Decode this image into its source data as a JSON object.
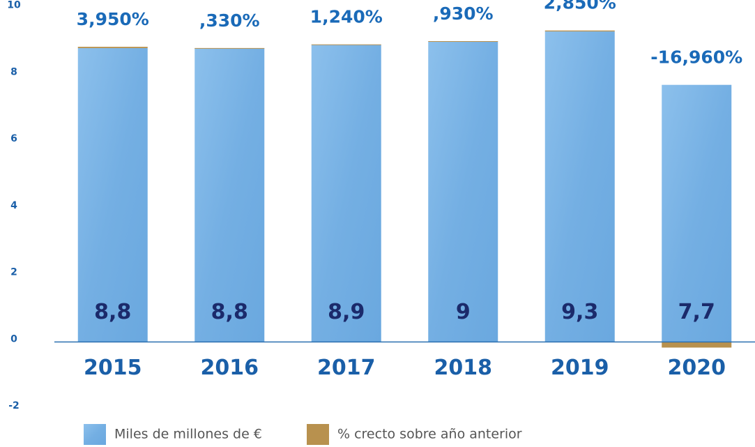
{
  "chart_data": {
    "type": "bar",
    "stacked": true,
    "categories": [
      "2015",
      "2016",
      "2017",
      "2018",
      "2019",
      "2020"
    ],
    "series": [
      {
        "name": "Miles de millones de €",
        "color": "#7ab4e6",
        "values": [
          8.8,
          8.8,
          8.9,
          9,
          9.3,
          7.7
        ],
        "value_labels": [
          "8,8",
          "8,8",
          "8,9",
          "9",
          "9,3",
          "7,7"
        ]
      },
      {
        "name": "% crecto sobre año anterior",
        "color": "#b8914e",
        "values": [
          0.0395,
          0.0033,
          0.0124,
          0.0093,
          0.0285,
          -0.1696
        ],
        "value_labels": [
          "3,950%",
          ",330%",
          "1,240%",
          ",930%",
          "2,850%",
          "-16,960%"
        ]
      }
    ],
    "ylim": [
      -2.5,
      10.2
    ],
    "yticks": [
      -2,
      0,
      2,
      4,
      6,
      8,
      10
    ],
    "grid": false,
    "legend": "bottom"
  }
}
